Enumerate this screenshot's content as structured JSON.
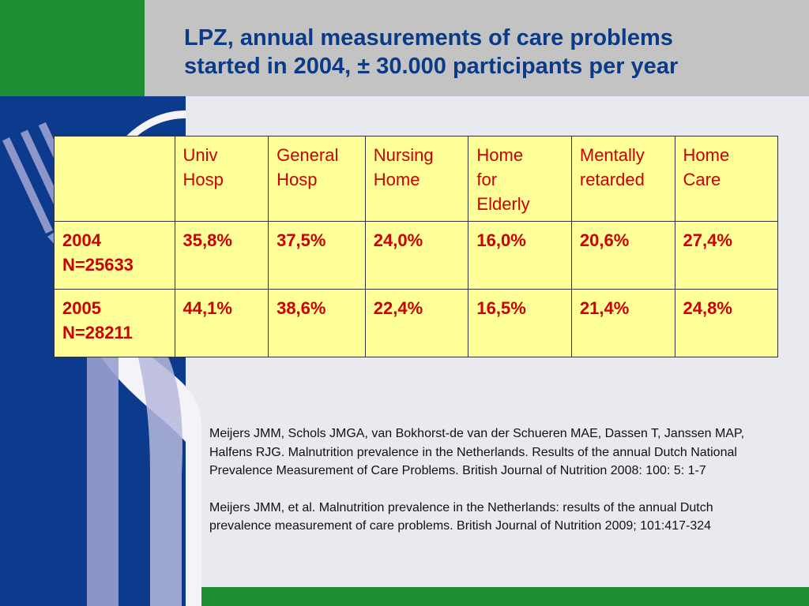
{
  "slide": {
    "title_lines": [
      "LPZ, annual measurements of care problems",
      "started in 2004, ± 30.000 participants per year"
    ]
  },
  "table": {
    "columns": [
      [],
      [
        "Univ",
        "Hosp"
      ],
      [
        "General",
        "Hosp"
      ],
      [
        "Nursing",
        "Home"
      ],
      [
        "Home",
        "for",
        "Elderly"
      ],
      [
        "Mentally",
        "retarded"
      ],
      [
        "Home",
        "Care"
      ]
    ],
    "rows": [
      {
        "label": [
          "2004",
          "N=25633"
        ],
        "values": [
          "35,8%",
          "37,5%",
          "24,0%",
          "16,0%",
          "20,6%",
          "27,4%"
        ]
      },
      {
        "label": [
          "2005",
          "N=28211"
        ],
        "values": [
          "44,1%",
          "38,6%",
          "22,4%",
          "16,5%",
          "21,4%",
          "24,8%"
        ]
      }
    ]
  },
  "references": [
    "Meijers JMM, Schols JMGA, van Bokhorst-de van der Schueren MAE, Dassen T, Janssen MAP, Halfens RJG. Malnutrition prevalence in the Netherlands. Results of the annual Dutch National Prevalence Measurement of Care Problems. British Journal of Nutrition 2008: 100: 5: 1-7",
    "Meijers JMM, et al. Malnutrition prevalence in the Netherlands: results of the annual Dutch prevalence measurement of care problems. British Journal of Nutrition 2009; 101:417-324"
  ],
  "colors": {
    "green": "#1e8f35",
    "navy": "#0c3a8c",
    "gray": "#c3c3c3",
    "slide_bg": "#e9e9f0",
    "title": "#0b3a86",
    "table_bg": "#ffff99",
    "table_text": "#cc0000"
  }
}
